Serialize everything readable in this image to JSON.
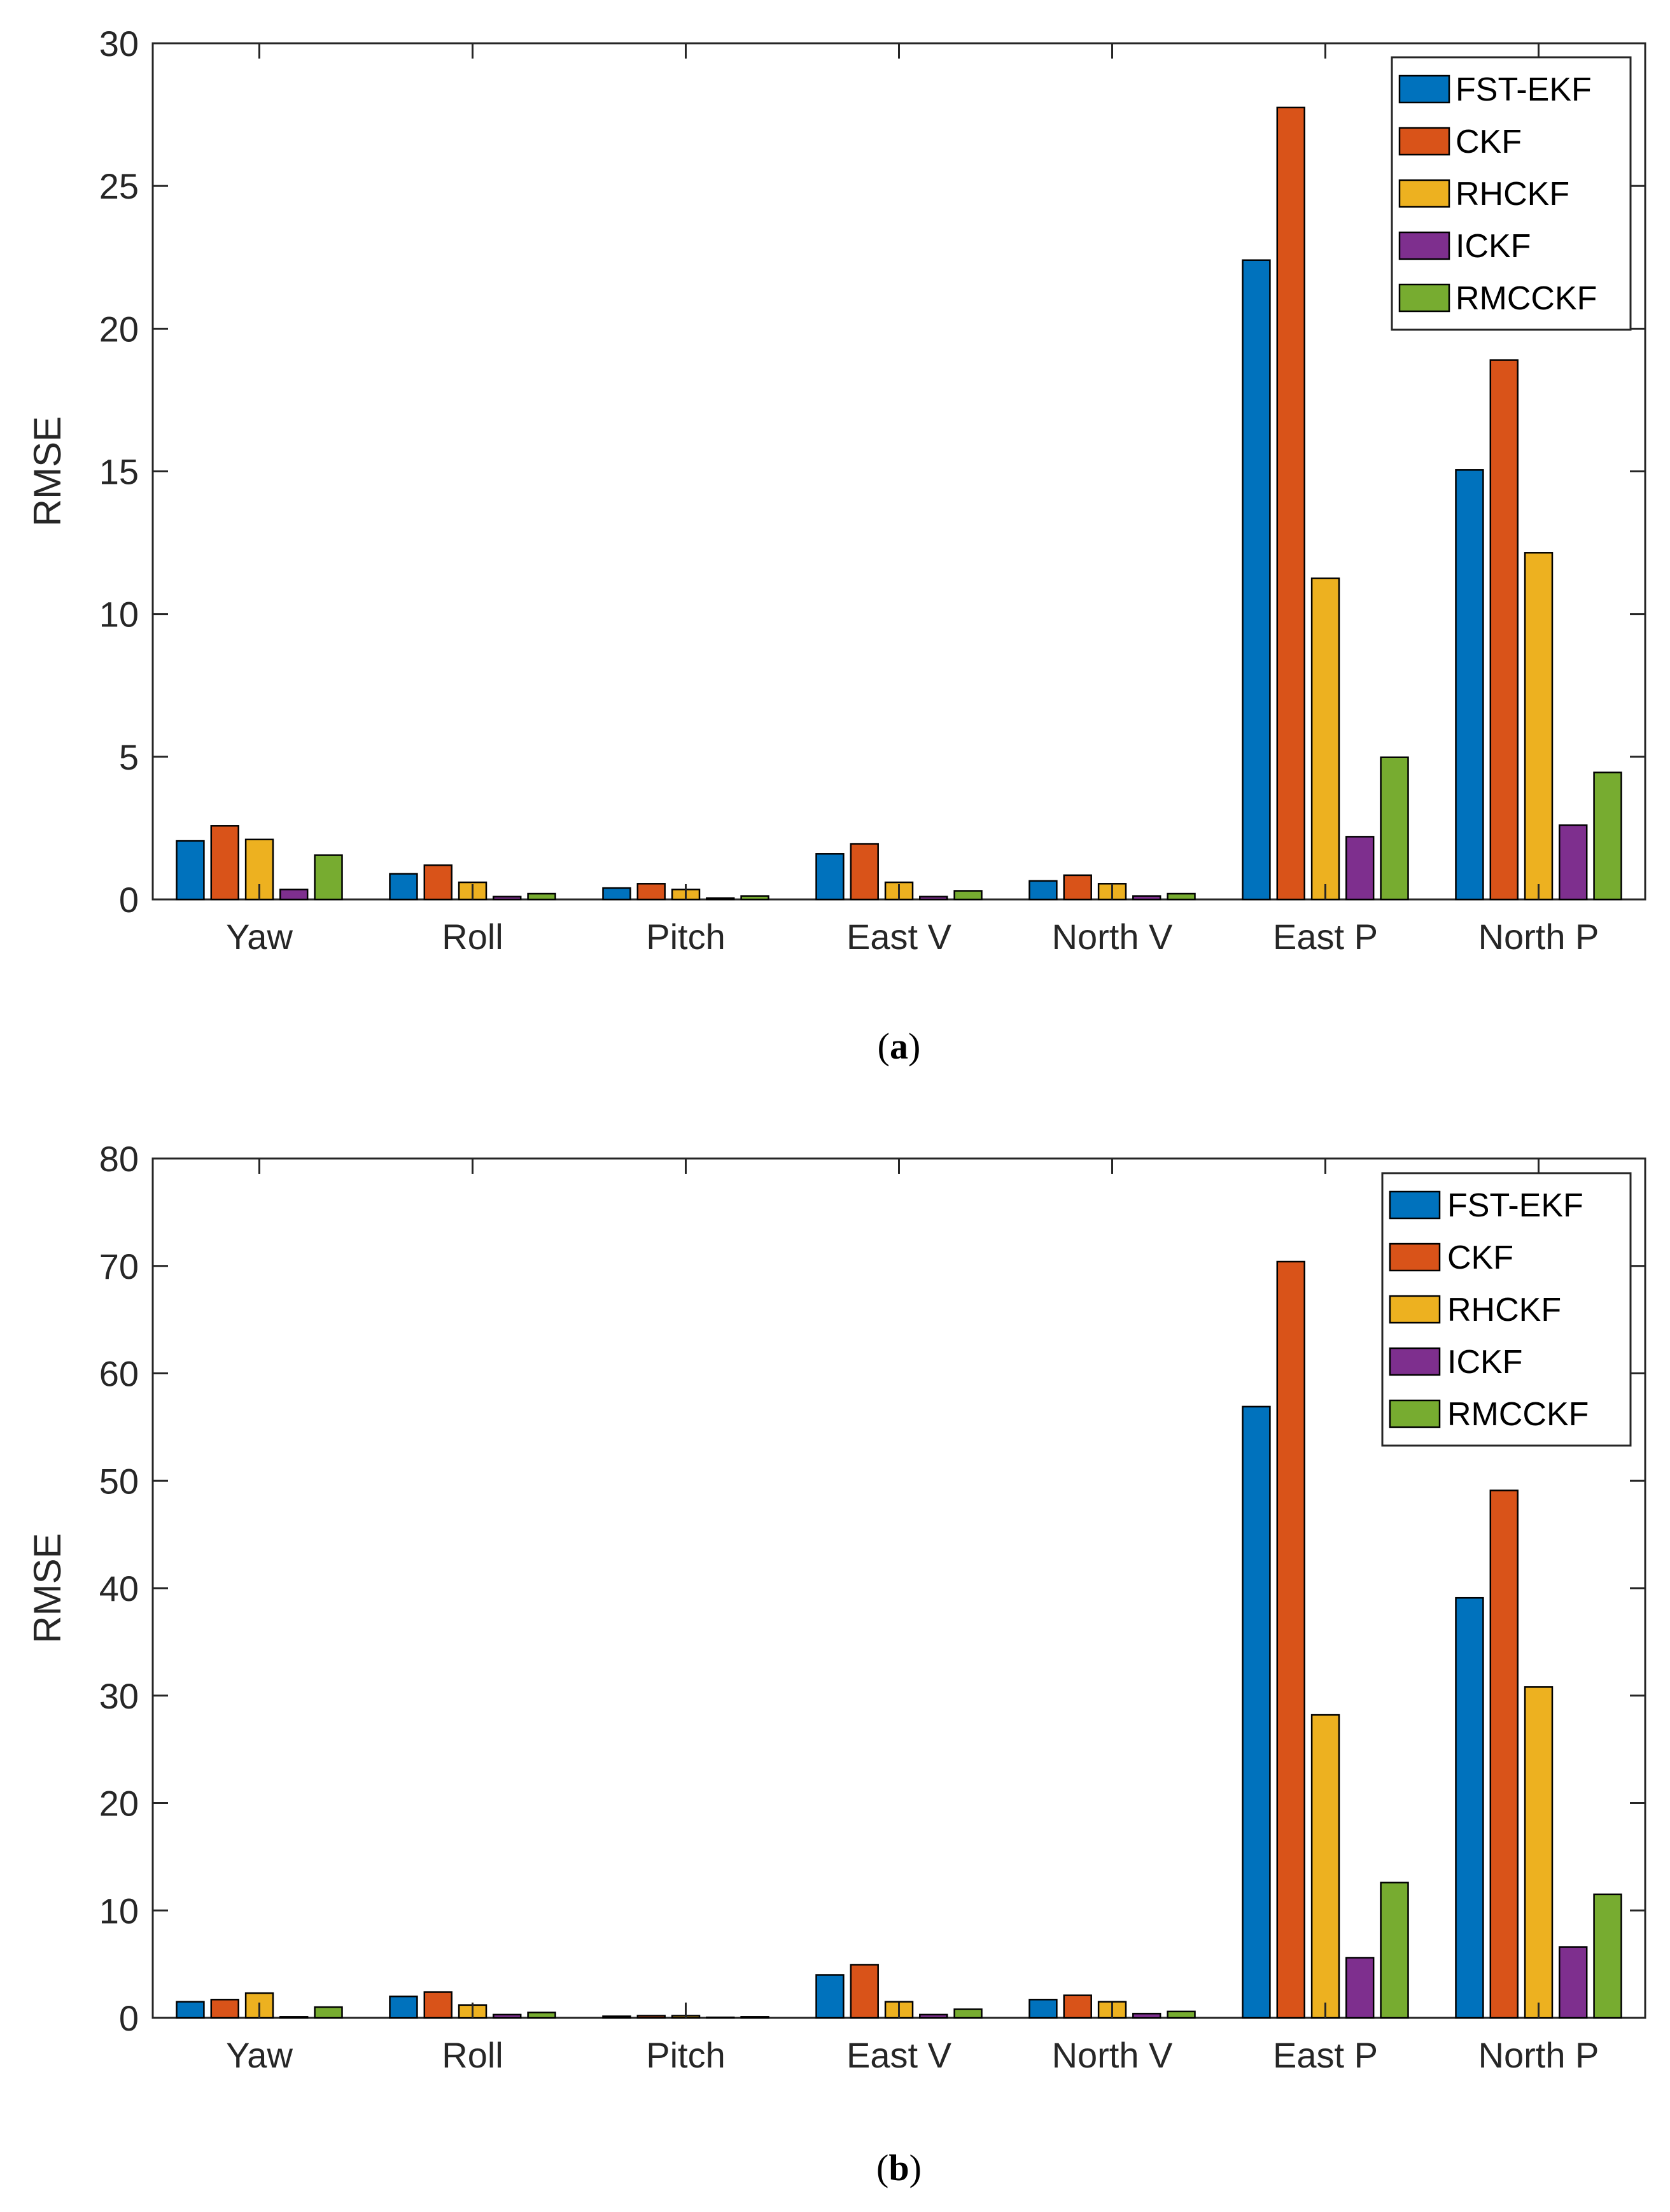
{
  "chart_data": [
    {
      "type": "bar",
      "caption_letter": "a",
      "categories": [
        "Yaw",
        "Roll",
        "Pitch",
        "East V",
        "North V",
        "East P",
        "North P"
      ],
      "series": [
        {
          "name": "FST-EKF",
          "color": "#0072BD",
          "values": [
            2.05,
            0.9,
            0.4,
            1.6,
            0.65,
            22.4,
            15.05
          ]
        },
        {
          "name": "CKF",
          "color": "#D95319",
          "values": [
            2.58,
            1.2,
            0.55,
            1.95,
            0.85,
            27.75,
            18.9
          ]
        },
        {
          "name": "RHCKF",
          "color": "#EDB120",
          "values": [
            2.1,
            0.6,
            0.35,
            0.6,
            0.55,
            11.25,
            12.15
          ]
        },
        {
          "name": "ICKF",
          "color": "#7E2F8E",
          "values": [
            0.35,
            0.1,
            0.05,
            0.1,
            0.12,
            2.2,
            2.6
          ]
        },
        {
          "name": "RMCCKF",
          "color": "#77AC30",
          "values": [
            1.55,
            0.2,
            0.12,
            0.3,
            0.2,
            4.98,
            4.45
          ]
        }
      ],
      "title": "",
      "xlabel": "",
      "ylabel": "RMSE",
      "ylim": [
        0,
        30
      ],
      "yticks": [
        0,
        5,
        10,
        15,
        20,
        25,
        30
      ],
      "legend": "top-right",
      "grid": false
    },
    {
      "type": "bar",
      "caption_letter": "b",
      "categories": [
        "Yaw",
        "Roll",
        "Pitch",
        "East V",
        "North V",
        "East P",
        "North P"
      ],
      "series": [
        {
          "name": "FST-EKF",
          "color": "#0072BD",
          "values": [
            1.5,
            2.0,
            0.15,
            4.0,
            1.7,
            56.9,
            39.1
          ]
        },
        {
          "name": "CKF",
          "color": "#D95319",
          "values": [
            1.7,
            2.4,
            0.2,
            4.95,
            2.1,
            70.4,
            49.1
          ]
        },
        {
          "name": "RHCKF",
          "color": "#EDB120",
          "values": [
            2.3,
            1.2,
            0.2,
            1.5,
            1.5,
            28.2,
            30.8
          ]
        },
        {
          "name": "ICKF",
          "color": "#7E2F8E",
          "values": [
            0.1,
            0.3,
            0.05,
            0.3,
            0.4,
            5.6,
            6.6
          ]
        },
        {
          "name": "RMCCKF",
          "color": "#77AC30",
          "values": [
            1.0,
            0.5,
            0.1,
            0.8,
            0.6,
            12.6,
            11.5
          ]
        }
      ],
      "title": "",
      "xlabel": "",
      "ylabel": "RMSE",
      "ylim": [
        0,
        80
      ],
      "yticks": [
        0,
        10,
        20,
        30,
        40,
        50,
        60,
        70,
        80
      ],
      "legend": "top-right",
      "grid": false
    }
  ]
}
